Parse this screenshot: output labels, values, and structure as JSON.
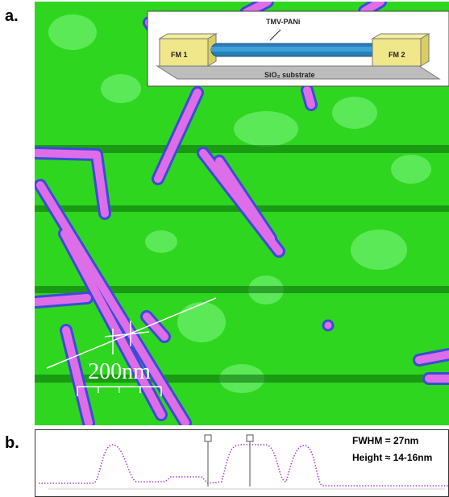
{
  "panel_a": {
    "label": "a.",
    "scale_bar": "200nm",
    "inset": {
      "tube_label": "TMV-PANi",
      "electrode_left": "FM 1",
      "electrode_right": "FM 2",
      "substrate": "SiO₂ substrate"
    }
  },
  "panel_b": {
    "label": "b.",
    "fwhm": "FWHM = 27nm",
    "height": "Height ≈ 14-16nm"
  }
}
